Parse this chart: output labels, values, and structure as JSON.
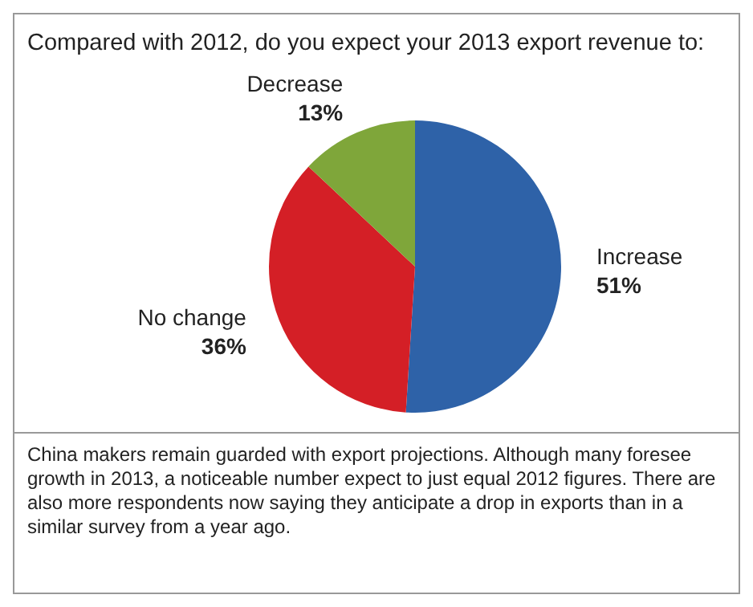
{
  "chart_data": {
    "type": "pie",
    "title": "Compared with 2012, do you expect your 2013 export revenue to:",
    "categories": [
      "Increase",
      "No change",
      "Decrease"
    ],
    "values": [
      51,
      36,
      13
    ],
    "value_labels": [
      "51%",
      "36%",
      "13%"
    ],
    "colors": [
      "#2e62a8",
      "#d41f26",
      "#7fa63a"
    ],
    "legend": false,
    "annotations": [
      "China makers remain guarded with export projections. Although many foresee growth in 2013, a noticeable number expect to just equal 2012 figures. There are also more respondents now saying they anticipate a drop in exports than in a similar survey from a year ago."
    ]
  }
}
